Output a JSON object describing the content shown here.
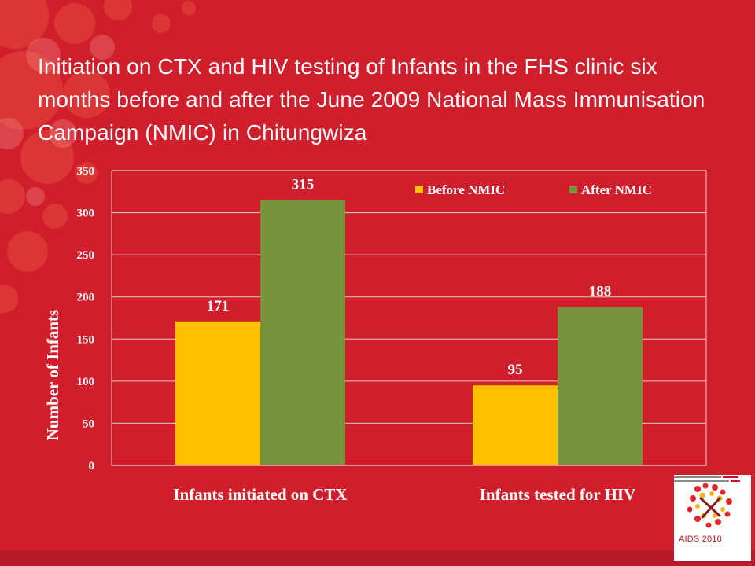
{
  "slide": {
    "title": "Initiation on CTX and HIV testing of Infants in the FHS clinic six months before and after the June 2009 National Mass Immunisation Campaign (NMIC) in Chitungwiza"
  },
  "logo": {
    "text": "AIDS 2010"
  },
  "colors": {
    "background": "#cf1f2d",
    "before": "#ffc000",
    "after": "#77933c",
    "text": "#ffffff"
  },
  "chart_data": {
    "type": "bar",
    "categories": [
      "Infants initiated on CTX",
      "Infants tested for HIV"
    ],
    "series": [
      {
        "name": "Before NMIC",
        "values": [
          171,
          95
        ]
      },
      {
        "name": "After NMIC",
        "values": [
          315,
          188
        ]
      }
    ],
    "ylabel": "Number of Infants",
    "ylim": [
      0,
      350
    ],
    "yticks": [
      0,
      50,
      100,
      150,
      200,
      250,
      300,
      350
    ],
    "grid": true,
    "legend": "top-right",
    "data_labels": true
  }
}
